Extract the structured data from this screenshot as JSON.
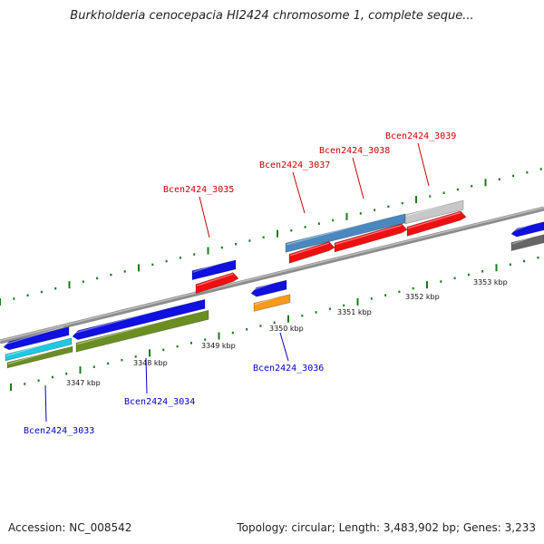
{
  "title": "Burkholderia cenocepacia HI2424 chromosome 1, complete seque...",
  "footer": {
    "accession": "Accession: NC_008542",
    "summary": "Topology: circular; Length: 3,483,902 bp; Genes: 3,233"
  },
  "scale": {
    "unit": "kbp",
    "labels": [
      "3347 kbp",
      "3348 kbp",
      "3349 kbp",
      "3350 kbp",
      "3351 kbp",
      "3352 kbp",
      "3353 kbp"
    ]
  },
  "genes": [
    {
      "label": "Bcen2424_3033",
      "strand": "minus"
    },
    {
      "label": "Bcen2424_3034",
      "strand": "minus"
    },
    {
      "label": "Bcen2424_3035",
      "strand": "plus"
    },
    {
      "label": "Bcen2424_3036",
      "strand": "minus"
    },
    {
      "label": "Bcen2424_3037",
      "strand": "plus"
    },
    {
      "label": "Bcen2424_3038",
      "strand": "plus"
    },
    {
      "label": "Bcen2424_3039",
      "strand": "plus"
    }
  ],
  "colors": {
    "plus_label": "#cc0000",
    "minus_label": "#0000cc",
    "backbone": "#8c8c8c",
    "tick": "#1a7a1a",
    "blue": "#1010e0",
    "red": "#ee1010",
    "olive": "#6b8e23",
    "cyan": "#1ec8e0",
    "orange": "#f59a1a",
    "steel": "#4a88c0",
    "lightgray": "#c8c8c8",
    "darkgray": "#666666"
  }
}
